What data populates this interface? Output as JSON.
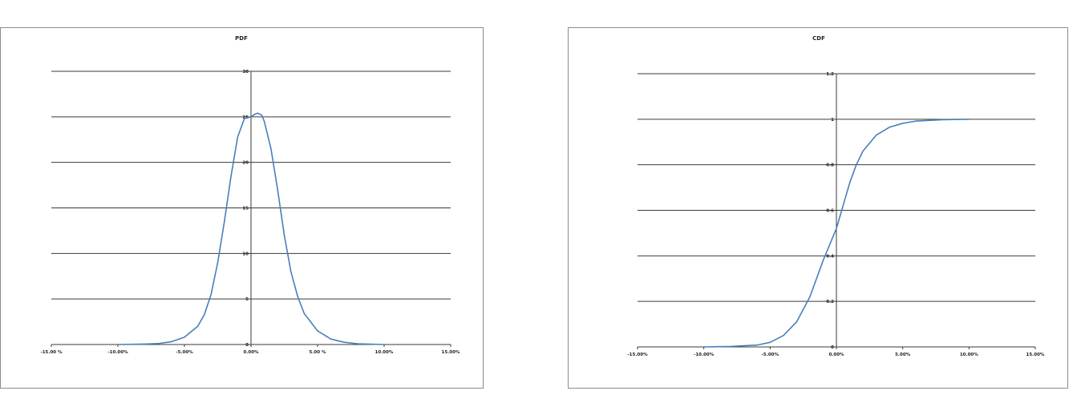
{
  "chart_data": [
    {
      "type": "line",
      "title": "PDF",
      "xlabel": "",
      "ylabel": "",
      "xlim": [
        -0.15,
        0.15
      ],
      "ylim": [
        0,
        30
      ],
      "grid": true,
      "x_ticks": [
        -0.15,
        -0.1,
        -0.05,
        0.0,
        0.05,
        0.1,
        0.15
      ],
      "x_tick_labels": [
        "-15.00 %",
        "-10.00%",
        "-5.00%",
        "0.00%",
        "5.00 %",
        "10.00%",
        "15.00%"
      ],
      "y_ticks": [
        0,
        5,
        10,
        15,
        20,
        25,
        30
      ],
      "y_tick_labels": [
        "0",
        "5",
        "10",
        "15",
        "20",
        "25",
        "30"
      ],
      "series": [
        {
          "color": "#4a7ebb",
          "x": [
            -0.1,
            -0.08,
            -0.07,
            -0.06,
            -0.05,
            -0.04,
            -0.035,
            -0.03,
            -0.025,
            -0.02,
            -0.015,
            -0.01,
            -0.005,
            0.0,
            0.003,
            0.005,
            0.008,
            0.01,
            0.015,
            0.02,
            0.025,
            0.03,
            0.035,
            0.04,
            0.05,
            0.06,
            0.07,
            0.08,
            0.1
          ],
          "y": [
            0.0,
            0.05,
            0.1,
            0.3,
            0.8,
            2.0,
            3.3,
            5.5,
            9.0,
            13.5,
            18.5,
            22.8,
            24.8,
            25.0,
            25.3,
            25.4,
            25.2,
            24.5,
            21.5,
            17.0,
            12.0,
            8.0,
            5.3,
            3.4,
            1.5,
            0.6,
            0.25,
            0.08,
            0.0
          ]
        }
      ]
    },
    {
      "type": "line",
      "title": "CDF",
      "xlabel": "",
      "ylabel": "",
      "xlim": [
        -0.15,
        0.15
      ],
      "ylim": [
        0,
        1.2
      ],
      "grid": true,
      "x_ticks": [
        -0.15,
        -0.1,
        -0.05,
        0.0,
        0.05,
        0.1,
        0.15
      ],
      "x_tick_labels": [
        "-15.00%",
        "-10.00%",
        "-5.00%",
        "0.00%",
        "5.00%",
        "10.00%",
        "15.00%"
      ],
      "y_ticks": [
        0,
        0.2,
        0.4,
        0.6,
        0.8,
        1.0,
        1.2
      ],
      "y_tick_labels": [
        "0",
        "0.2",
        "0.4",
        "0.6",
        "0.8",
        "1",
        "1.2"
      ],
      "series": [
        {
          "color": "#4a7ebb",
          "x": [
            -0.1,
            -0.08,
            -0.06,
            -0.05,
            -0.04,
            -0.03,
            -0.02,
            -0.015,
            -0.01,
            -0.005,
            0.0,
            0.005,
            0.01,
            0.015,
            0.02,
            0.03,
            0.04,
            0.05,
            0.06,
            0.08,
            0.1
          ],
          "y": [
            0.0,
            0.002,
            0.008,
            0.02,
            0.05,
            0.11,
            0.22,
            0.3,
            0.38,
            0.45,
            0.52,
            0.62,
            0.72,
            0.8,
            0.86,
            0.93,
            0.965,
            0.982,
            0.992,
            0.998,
            1.0
          ]
        }
      ]
    }
  ]
}
